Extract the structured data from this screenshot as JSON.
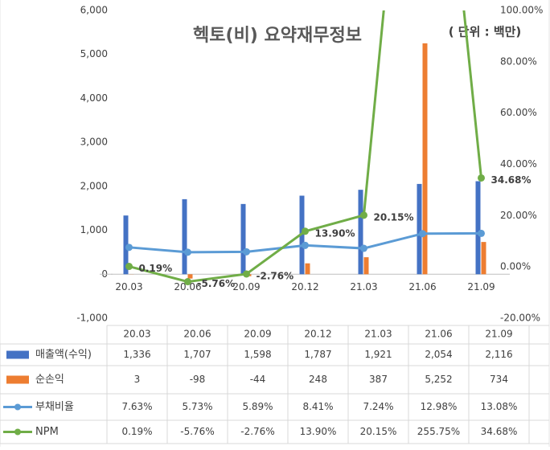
{
  "chart_data": {
    "type": "bar",
    "title": "헥토(비) 요약재무정보",
    "subtitle": "( 단위 : 백만)",
    "categories": [
      "20.03",
      "20.06",
      "20.09",
      "20.12",
      "21.03",
      "21.06",
      "21.09"
    ],
    "ylim": [
      -1000,
      6000
    ],
    "yticks": [
      {
        "value": -1000,
        "label": "-1,000"
      },
      0,
      {
        "value": 1000,
        "label": "1,000"
      },
      {
        "value": 2000,
        "label": "2,000"
      },
      {
        "value": 3000,
        "label": "3,000"
      },
      {
        "value": 4000,
        "label": "4,000"
      },
      {
        "value": 5000,
        "label": "5,000"
      },
      {
        "value": 6000,
        "label": "6,000"
      }
    ],
    "y2lim": [
      -20,
      100
    ],
    "y2ticks": [
      {
        "value": -20,
        "label": "-20.00%"
      },
      {
        "value": 0,
        "label": "0.00%"
      },
      {
        "value": 20,
        "label": "20.00%"
      },
      {
        "value": 40,
        "label": "40.00%"
      },
      {
        "value": 60,
        "label": "60.00%"
      },
      {
        "value": 80,
        "label": "80.00%"
      },
      {
        "value": 100,
        "label": "100.00%"
      }
    ],
    "series": [
      {
        "name": "매출액(수익)",
        "type": "bar",
        "color": "#4472c4",
        "values": [
          1336,
          1707,
          1598,
          1787,
          1921,
          2054,
          2116
        ],
        "value_labels": [
          "1,336",
          "1,707",
          "1,598",
          "1,787",
          "1,921",
          "2,054",
          "2,116"
        ]
      },
      {
        "name": "순손익",
        "type": "bar",
        "color": "#ed7d31",
        "values": [
          3,
          -98,
          -44,
          248,
          387,
          5252,
          734
        ],
        "value_labels": [
          "3",
          "-98",
          "-44",
          "248",
          "387",
          "5,252",
          "734"
        ]
      },
      {
        "name": "부채비율",
        "type": "line",
        "axis": "y2",
        "color": "#5b9bd5",
        "values": [
          7.63,
          5.73,
          5.89,
          8.41,
          7.24,
          12.98,
          13.08
        ],
        "value_labels": [
          "7.63%",
          "5.73%",
          "5.89%",
          "8.41%",
          "7.24%",
          "12.98%",
          "13.08%"
        ]
      },
      {
        "name": "NPM",
        "type": "line",
        "axis": "y2",
        "color": "#70ad47",
        "values": [
          0.19,
          -5.76,
          -2.76,
          13.9,
          20.15,
          255.75,
          34.68
        ],
        "value_labels": [
          "0.19%",
          "-5.76%",
          "-2.76%",
          "13.90%",
          "20.15%",
          "255.75%",
          "34.68%"
        ],
        "data_labels": true
      }
    ]
  }
}
